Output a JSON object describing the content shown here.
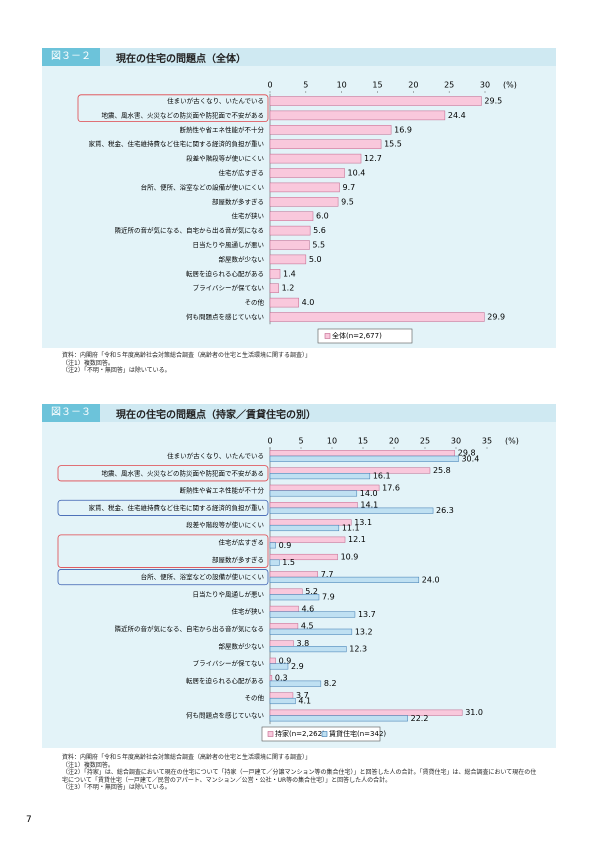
{
  "chart_data": [
    {
      "type": "hbar",
      "figure_label": "図３－２",
      "title": "現在の住宅の問題点（全体）",
      "unit": "(%)",
      "categories": [
        "住まいが古くなり、いたんでいる",
        "地震、風水害、火災などの防災面や防犯面で不安がある",
        "断熱性や省エネ性能が不十分",
        "家賃、税金、住宅維持費など住宅に関する経済的負担が重い",
        "段差や階段等が使いにくい",
        "住宅が広すぎる",
        "台所、便所、浴室などの設備が使いにくい",
        "部屋数が多すぎる",
        "住宅が狭い",
        "隣近所の音が気になる、自宅から出る音が気になる",
        "日当たりや風通しが悪い",
        "部屋数が少ない",
        "転居を迫られる心配がある",
        "プライバシーが保てない",
        "その他",
        "何も問題点を感じていない"
      ],
      "series": [
        {
          "name": "全体(n=2,677)",
          "color": "#f9c8dc",
          "values": [
            29.5,
            24.4,
            16.9,
            15.5,
            12.7,
            10.4,
            9.7,
            9.5,
            6.0,
            5.6,
            5.5,
            5.0,
            1.4,
            1.2,
            4.0,
            29.9
          ],
          "value_labels": [
            "29.5",
            "24.4",
            "16.9",
            "15.5",
            "12.7",
            "10.4",
            "9.7",
            "9.5",
            "6.0",
            "5.6",
            "5.5",
            "5.0",
            "1.4",
            "1.2",
            "4.0",
            "29.9"
          ]
        }
      ],
      "xlim": [
        0,
        30
      ],
      "xticks": [
        0,
        5,
        10,
        15,
        20,
        25,
        30
      ],
      "notes": [
        "資料：内閣府「令和５年度高齢社会対策総合調査（高齢者の住宅と生活環境に関する調査）」",
        "（注1）複数回答。",
        "（注2）「不明・無回答」は除いている。"
      ]
    },
    {
      "type": "hbar",
      "figure_label": "図３－３",
      "title": "現在の住宅の問題点（持家／賃貸住宅の別）",
      "unit": "(%)",
      "categories": [
        "住まいが古くなり、いたんでいる",
        "地震、風水害、火災などの防災面や防犯面で不安がある",
        "断熱性や省エネ性能が不十分",
        "家賃、税金、住宅維持費など住宅に関する経済的負担が重い",
        "段差や階段等が使いにくい",
        "住宅が広すぎる",
        "部屋数が多すぎる",
        "台所、便所、浴室などの設備が使いにくい",
        "日当たりや風通しが悪い",
        "住宅が狭い",
        "隣近所の音が気になる、自宅から出る音が気になる",
        "部屋数が少ない",
        "プライバシーが保てない",
        "転居を迫られる心配がある",
        "その他",
        "何も問題点を感じていない"
      ],
      "series": [
        {
          "name": "持家(n=2,262)",
          "color": "#f9c8dc",
          "values": [
            29.8,
            25.8,
            17.6,
            14.1,
            13.1,
            12.1,
            10.9,
            7.7,
            5.2,
            4.6,
            4.5,
            3.8,
            0.9,
            0.3,
            3.7,
            31.0
          ],
          "value_labels": [
            "29.8",
            "25.8",
            "17.6",
            "14.1",
            "13.1",
            "12.1",
            "10.9",
            "7.7",
            "5.2",
            "4.6",
            "4.5",
            "3.8",
            "0.9",
            "0.3",
            "3.7",
            "31.0"
          ]
        },
        {
          "name": "賃貸住宅(n=342)",
          "color": "#bfe0f2",
          "values": [
            30.4,
            16.1,
            14.0,
            26.3,
            11.1,
            0.9,
            1.5,
            24.0,
            7.9,
            13.7,
            13.2,
            12.3,
            2.9,
            8.2,
            4.1,
            22.2
          ],
          "value_labels": [
            "30.4",
            "16.1",
            "14.0",
            "26.3",
            "11.1",
            "0.9",
            "1.5",
            "24.0",
            "7.9",
            "13.7",
            "13.2",
            "12.3",
            "2.9",
            "8.2",
            "4.1",
            "22.2"
          ]
        }
      ],
      "xlim": [
        0,
        35
      ],
      "xticks": [
        0,
        5,
        10,
        15,
        20,
        25,
        30,
        35
      ],
      "notes": [
        "資料：内閣府「令和５年度高齢社会対策総合調査（高齢者の住宅と生活環境に関する調査）」",
        "（注1）複数回答。",
        "（注2）「持家」は、総合調査において現在の住宅について「持家（一戸建て／分譲マンション等の集合住宅）」と回答した人の合計。「賃貸住宅」は、総合調査において現在の住宅について「賃貸住宅（一戸建て／民営のアパート、マンション／公営・公社・UR等の集合住宅）」と回答した人の合計。",
        "（注3）「不明・無回答」は除いている。"
      ]
    }
  ],
  "page_number": "7"
}
